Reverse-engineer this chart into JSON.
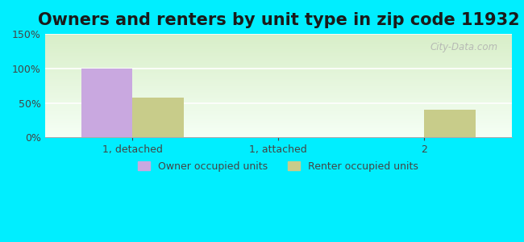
{
  "title": "Owners and renters by unit type in zip code 11932",
  "categories": [
    "1, detached",
    "1, attached",
    "2"
  ],
  "owner_values": [
    100,
    0,
    0
  ],
  "renter_values": [
    58,
    0,
    40
  ],
  "owner_color": "#c9a8e0",
  "renter_color": "#c8cc8a",
  "ylim": [
    0,
    150
  ],
  "yticks": [
    0,
    50,
    100,
    150
  ],
  "ytick_labels": [
    "0%",
    "50%",
    "100%",
    "150%"
  ],
  "bar_width": 0.35,
  "legend_owner": "Owner occupied units",
  "legend_renter": "Renter occupied units",
  "bg_outer": "#00eeff",
  "bg_inner_top": "#d8eec8",
  "bg_inner_bottom": "#f5fff5",
  "title_fontsize": 15,
  "watermark": "City-Data.com"
}
